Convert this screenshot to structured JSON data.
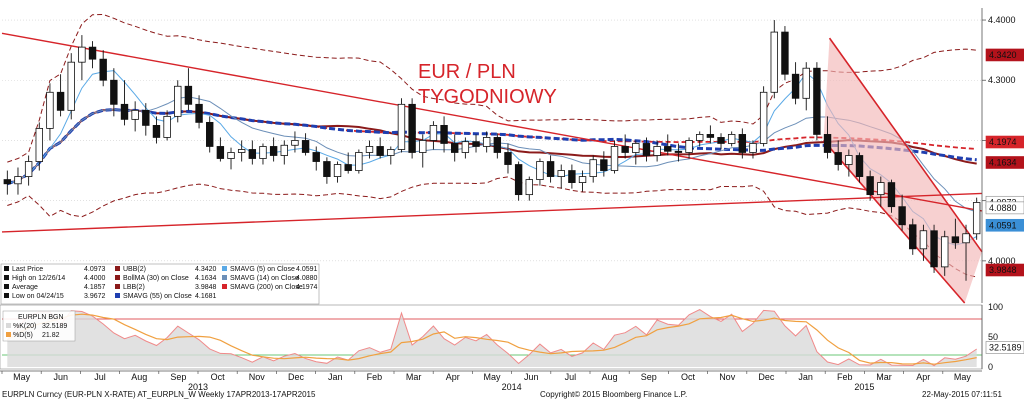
{
  "chart_data": [
    {
      "type": "candlestick",
      "instrument": "EURPLN Curncy (EUR-PLN X-RATE) AT_EURPLN_W",
      "period": "Weekly 17APR2013-17APR2015",
      "annotation": [
        "EUR / PLN",
        "TYGODNIOWY"
      ],
      "ylim": [
        3.93,
        4.42
      ],
      "yticks": [
        "4.4000",
        "4.3000",
        "4.2000",
        "4.1000",
        "4.0000"
      ],
      "yticks_values": [
        4.4,
        4.3,
        4.2,
        4.1,
        4.0
      ],
      "xticks": [
        "May",
        "Jun",
        "Jul",
        "Aug",
        "Sep",
        "Oct",
        "Nov",
        "Dec",
        "Jan",
        "Feb",
        "Mar",
        "Apr",
        "May",
        "Jun",
        "Jul",
        "Aug",
        "Sep",
        "Oct",
        "Nov",
        "Dec",
        "Jan",
        "Feb",
        "Mar",
        "Apr",
        "May"
      ],
      "years": [
        "2013",
        "2014",
        "2015"
      ],
      "price_tags": [
        {
          "label": "4.3420",
          "value": 4.342,
          "color": "#b3121b"
        },
        {
          "label": "4.1974",
          "value": 4.1974,
          "color": "#d6242a"
        },
        {
          "label": "4.1634",
          "value": 4.1634,
          "color": "#b3121b"
        },
        {
          "label": "4.0973",
          "value": 4.0973,
          "color": "#ffffff"
        },
        {
          "label": "4.0880",
          "value": 4.088,
          "color": "#ffffff"
        },
        {
          "label": "4.0591",
          "value": 4.0591,
          "color": "#3a8fd6"
        },
        {
          "label": "3.9848",
          "value": 3.9848,
          "color": "#b3121b"
        }
      ],
      "legend": [
        {
          "label": "Last Price",
          "value": "4.0973"
        },
        {
          "label": "High on 12/26/14",
          "value": "4.4000"
        },
        {
          "label": "Average",
          "value": "4.1857"
        },
        {
          "label": "Low on 04/24/15",
          "value": "3.9672"
        },
        {
          "label": "UBB(2)",
          "value": "4.3420"
        },
        {
          "label": "BollMA (30) on Close",
          "value": "4.1634"
        },
        {
          "label": "LBB(2)",
          "value": "3.9848"
        },
        {
          "label": "SMAVG (55) on Close",
          "value": "4.1681"
        },
        {
          "label": "SMAVG (5) on Close",
          "value": "4.0591"
        },
        {
          "label": "SMAVG (14) on Close",
          "value": "4.0880"
        },
        {
          "label": "SMAVG (200) on Close",
          "value": "4.1974"
        }
      ],
      "candles": [
        {
          "o": 4.135,
          "h": 4.15,
          "l": 4.11,
          "c": 4.128
        },
        {
          "o": 4.128,
          "h": 4.155,
          "l": 4.11,
          "c": 4.14
        },
        {
          "o": 4.14,
          "h": 4.175,
          "l": 4.125,
          "c": 4.165
        },
        {
          "o": 4.165,
          "h": 4.23,
          "l": 4.15,
          "c": 4.22
        },
        {
          "o": 4.22,
          "h": 4.295,
          "l": 4.2,
          "c": 4.28
        },
        {
          "o": 4.28,
          "h": 4.31,
          "l": 4.24,
          "c": 4.25
        },
        {
          "o": 4.25,
          "h": 4.345,
          "l": 4.235,
          "c": 4.33
        },
        {
          "o": 4.33,
          "h": 4.375,
          "l": 4.3,
          "c": 4.355
        },
        {
          "o": 4.355,
          "h": 4.365,
          "l": 4.32,
          "c": 4.335
        },
        {
          "o": 4.335,
          "h": 4.35,
          "l": 4.29,
          "c": 4.3
        },
        {
          "o": 4.3,
          "h": 4.32,
          "l": 4.24,
          "c": 4.26
        },
        {
          "o": 4.26,
          "h": 4.3,
          "l": 4.225,
          "c": 4.235
        },
        {
          "o": 4.235,
          "h": 4.265,
          "l": 4.215,
          "c": 4.25
        },
        {
          "o": 4.25,
          "h": 4.262,
          "l": 4.208,
          "c": 4.225
        },
        {
          "o": 4.225,
          "h": 4.24,
          "l": 4.195,
          "c": 4.205
        },
        {
          "o": 4.205,
          "h": 4.25,
          "l": 4.2,
          "c": 4.24
        },
        {
          "o": 4.24,
          "h": 4.3,
          "l": 4.23,
          "c": 4.29
        },
        {
          "o": 4.29,
          "h": 4.32,
          "l": 4.25,
          "c": 4.26
        },
        {
          "o": 4.26,
          "h": 4.275,
          "l": 4.22,
          "c": 4.23
        },
        {
          "o": 4.23,
          "h": 4.24,
          "l": 4.18,
          "c": 4.19
        },
        {
          "o": 4.19,
          "h": 4.205,
          "l": 4.165,
          "c": 4.17
        },
        {
          "o": 4.17,
          "h": 4.188,
          "l": 4.152,
          "c": 4.18
        },
        {
          "o": 4.18,
          "h": 4.2,
          "l": 4.165,
          "c": 4.185
        },
        {
          "o": 4.185,
          "h": 4.2,
          "l": 4.16,
          "c": 4.17
        },
        {
          "o": 4.17,
          "h": 4.195,
          "l": 4.16,
          "c": 4.19
        },
        {
          "o": 4.19,
          "h": 4.205,
          "l": 4.165,
          "c": 4.175
        },
        {
          "o": 4.175,
          "h": 4.2,
          "l": 4.16,
          "c": 4.192
        },
        {
          "o": 4.192,
          "h": 4.215,
          "l": 4.18,
          "c": 4.2
        },
        {
          "o": 4.2,
          "h": 4.212,
          "l": 4.175,
          "c": 4.18
        },
        {
          "o": 4.18,
          "h": 4.19,
          "l": 4.15,
          "c": 4.165
        },
        {
          "o": 4.165,
          "h": 4.172,
          "l": 4.128,
          "c": 4.14
        },
        {
          "o": 4.14,
          "h": 4.165,
          "l": 4.13,
          "c": 4.16
        },
        {
          "o": 4.16,
          "h": 4.18,
          "l": 4.145,
          "c": 4.15
        },
        {
          "o": 4.15,
          "h": 4.185,
          "l": 4.145,
          "c": 4.18
        },
        {
          "o": 4.18,
          "h": 4.2,
          "l": 4.17,
          "c": 4.19
        },
        {
          "o": 4.19,
          "h": 4.205,
          "l": 4.17,
          "c": 4.175
        },
        {
          "o": 4.175,
          "h": 4.19,
          "l": 4.16,
          "c": 4.185
        },
        {
          "o": 4.185,
          "h": 4.27,
          "l": 4.18,
          "c": 4.26
        },
        {
          "o": 4.26,
          "h": 4.27,
          "l": 4.17,
          "c": 4.18
        },
        {
          "o": 4.18,
          "h": 4.21,
          "l": 4.155,
          "c": 4.2
        },
        {
          "o": 4.2,
          "h": 4.232,
          "l": 4.185,
          "c": 4.225
        },
        {
          "o": 4.225,
          "h": 4.24,
          "l": 4.18,
          "c": 4.195
        },
        {
          "o": 4.195,
          "h": 4.21,
          "l": 4.165,
          "c": 4.18
        },
        {
          "o": 4.18,
          "h": 4.205,
          "l": 4.17,
          "c": 4.198
        },
        {
          "o": 4.198,
          "h": 4.21,
          "l": 4.18,
          "c": 4.19
        },
        {
          "o": 4.19,
          "h": 4.215,
          "l": 4.18,
          "c": 4.205
        },
        {
          "o": 4.205,
          "h": 4.212,
          "l": 4.17,
          "c": 4.18
        },
        {
          "o": 4.18,
          "h": 4.195,
          "l": 4.145,
          "c": 4.16
        },
        {
          "o": 4.16,
          "h": 4.165,
          "l": 4.1,
          "c": 4.11
        },
        {
          "o": 4.11,
          "h": 4.14,
          "l": 4.1,
          "c": 4.135
        },
        {
          "o": 4.135,
          "h": 4.17,
          "l": 4.125,
          "c": 4.165
        },
        {
          "o": 4.165,
          "h": 4.175,
          "l": 4.13,
          "c": 4.14
        },
        {
          "o": 4.14,
          "h": 4.16,
          "l": 4.12,
          "c": 4.15
        },
        {
          "o": 4.15,
          "h": 4.16,
          "l": 4.12,
          "c": 4.13
        },
        {
          "o": 4.13,
          "h": 4.15,
          "l": 4.115,
          "c": 4.14
        },
        {
          "o": 4.14,
          "h": 4.175,
          "l": 4.13,
          "c": 4.168
        },
        {
          "o": 4.168,
          "h": 4.182,
          "l": 4.14,
          "c": 4.15
        },
        {
          "o": 4.15,
          "h": 4.2,
          "l": 4.145,
          "c": 4.19
        },
        {
          "o": 4.19,
          "h": 4.21,
          "l": 4.17,
          "c": 4.18
        },
        {
          "o": 4.18,
          "h": 4.2,
          "l": 4.16,
          "c": 4.195
        },
        {
          "o": 4.195,
          "h": 4.205,
          "l": 4.165,
          "c": 4.175
        },
        {
          "o": 4.175,
          "h": 4.2,
          "l": 4.165,
          "c": 4.19
        },
        {
          "o": 4.19,
          "h": 4.21,
          "l": 4.175,
          "c": 4.182
        },
        {
          "o": 4.182,
          "h": 4.195,
          "l": 4.165,
          "c": 4.18
        },
        {
          "o": 4.18,
          "h": 4.205,
          "l": 4.17,
          "c": 4.2
        },
        {
          "o": 4.2,
          "h": 4.215,
          "l": 4.19,
          "c": 4.21
        },
        {
          "o": 4.21,
          "h": 4.225,
          "l": 4.195,
          "c": 4.205
        },
        {
          "o": 4.205,
          "h": 4.212,
          "l": 4.185,
          "c": 4.195
        },
        {
          "o": 4.195,
          "h": 4.215,
          "l": 4.19,
          "c": 4.21
        },
        {
          "o": 4.21,
          "h": 4.22,
          "l": 4.17,
          "c": 4.18
        },
        {
          "o": 4.18,
          "h": 4.2,
          "l": 4.17,
          "c": 4.195
        },
        {
          "o": 4.195,
          "h": 4.29,
          "l": 4.19,
          "c": 4.28
        },
        {
          "o": 4.28,
          "h": 4.4,
          "l": 4.27,
          "c": 4.38
        },
        {
          "o": 4.38,
          "h": 4.39,
          "l": 4.3,
          "c": 4.31
        },
        {
          "o": 4.31,
          "h": 4.33,
          "l": 4.26,
          "c": 4.27
        },
        {
          "o": 4.27,
          "h": 4.33,
          "l": 4.25,
          "c": 4.32
        },
        {
          "o": 4.32,
          "h": 4.33,
          "l": 4.2,
          "c": 4.21
        },
        {
          "o": 4.21,
          "h": 4.24,
          "l": 4.17,
          "c": 4.18
        },
        {
          "o": 4.18,
          "h": 4.2,
          "l": 4.15,
          "c": 4.16
        },
        {
          "o": 4.16,
          "h": 4.185,
          "l": 4.14,
          "c": 4.175
        },
        {
          "o": 4.175,
          "h": 4.18,
          "l": 4.13,
          "c": 4.14
        },
        {
          "o": 4.14,
          "h": 4.15,
          "l": 4.1,
          "c": 4.11
        },
        {
          "o": 4.11,
          "h": 4.14,
          "l": 4.09,
          "c": 4.13
        },
        {
          "o": 4.13,
          "h": 4.135,
          "l": 4.08,
          "c": 4.09
        },
        {
          "o": 4.09,
          "h": 4.11,
          "l": 4.05,
          "c": 4.06
        },
        {
          "o": 4.06,
          "h": 4.07,
          "l": 4.01,
          "c": 4.02
        },
        {
          "o": 4.02,
          "h": 4.06,
          "l": 4.0,
          "c": 4.05
        },
        {
          "o": 4.05,
          "h": 4.06,
          "l": 3.98,
          "c": 3.99
        },
        {
          "o": 3.99,
          "h": 4.05,
          "l": 3.975,
          "c": 4.04
        },
        {
          "o": 4.04,
          "h": 4.07,
          "l": 4.02,
          "c": 4.03
        },
        {
          "o": 4.03,
          "h": 4.06,
          "l": 3.967,
          "c": 4.045
        },
        {
          "o": 4.045,
          "h": 4.105,
          "l": 4.035,
          "c": 4.097
        }
      ],
      "oscillator": {
        "label": "EURPLN BGN",
        "items": [
          {
            "label": "%K(20)",
            "value": "32.5189"
          },
          {
            "label": "%D(5)",
            "value": "21.82"
          }
        ],
        "ylim": [
          0,
          100
        ],
        "yticks": [
          "100",
          "50",
          "0"
        ],
        "yticks_values": [
          100,
          50,
          0
        ],
        "tag_value": 32.5189,
        "tag_label": "32.5189",
        "upper_line": 80,
        "lower_line": 20
      },
      "footer": {
        "left": "EURPLN Curncy (EUR-PLN X-RATE) AT_EURPLN_W  Weekly 17APR2013-17APR2015",
        "center": "Copyright© 2015 Bloomberg Finance L.P.",
        "right": "22-May-2015 07:11:51"
      }
    }
  ]
}
